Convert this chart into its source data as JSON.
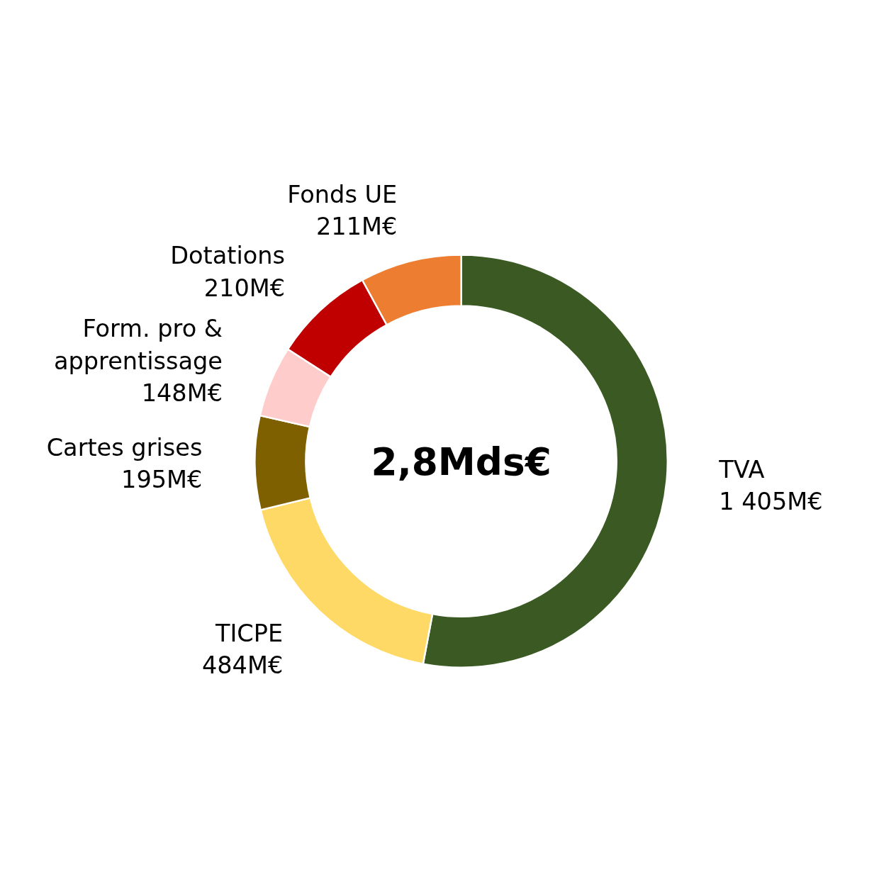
{
  "chart_data": {
    "type": "donut",
    "categories": [
      "TVA",
      "TICPE",
      "Cartes grises",
      "Form. pro & apprentissage",
      "Dotations",
      "Fonds UE"
    ],
    "values": [
      1405,
      484,
      195,
      148,
      210,
      211
    ],
    "colors": [
      "#3b5a23",
      "#ffd966",
      "#7f6000",
      "#ffcccc",
      "#c00000",
      "#ed7d31"
    ],
    "value_labels": [
      "1 405M€",
      "484M€",
      "195M€",
      "148M€",
      "210M€",
      "211M€"
    ],
    "annotations": [
      "2,8Mds€"
    ]
  }
}
